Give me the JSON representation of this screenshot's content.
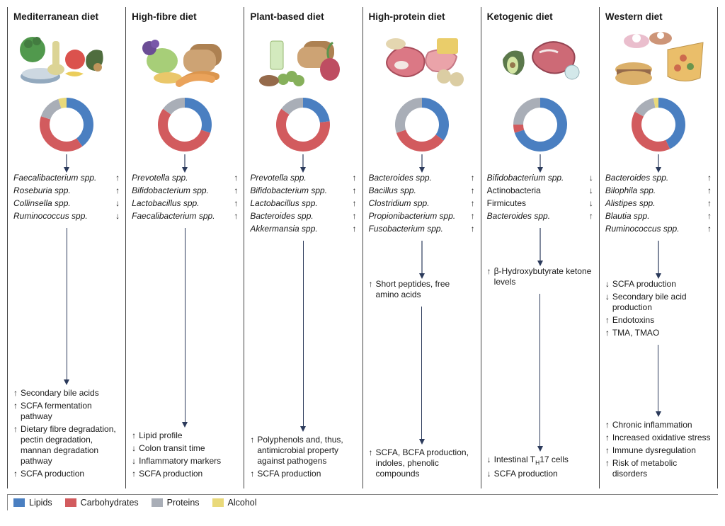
{
  "colors": {
    "lipids": "#4a7fc1",
    "carbs": "#d25b5e",
    "proteins": "#a9aeb7",
    "alcohol": "#e9d97a",
    "arrow": "#2b3a5b",
    "border": "#444444",
    "text": "#1a1a1a"
  },
  "fonts": {
    "title_weight": "700",
    "title_size_pt": 13.5,
    "body_size_pt": 12
  },
  "donut": {
    "outer_r": 38,
    "inner_r": 24
  },
  "legend": [
    {
      "key": "lipids",
      "label": "Lipids"
    },
    {
      "key": "carbs",
      "label": "Carbohydrates"
    },
    {
      "key": "proteins",
      "label": "Proteins"
    },
    {
      "key": "alcohol",
      "label": "Alcohol"
    }
  ],
  "diets": [
    {
      "title": "Mediterranean diet",
      "food_icon": "mediterranean",
      "macros": {
        "lipids": 40,
        "carbs": 40,
        "proteins": 15,
        "alcohol": 5
      },
      "bacteria": [
        {
          "name": "Faecalibacterium spp.",
          "dir": "up"
        },
        {
          "name": "Roseburia spp.",
          "dir": "up"
        },
        {
          "name": "Collinsella spp.",
          "dir": "down"
        },
        {
          "name": "Ruminococcus spp.",
          "dir": "down"
        }
      ],
      "metabolites": [],
      "outcomes": [
        {
          "dir": "up",
          "text": "Secondary bile acids"
        },
        {
          "dir": "up",
          "text": "SCFA fermentation pathway"
        },
        {
          "dir": "up",
          "text": "Dietary fibre degradation, pectin degradation, mannan degradation pathway"
        },
        {
          "dir": "up",
          "text": "SCFA production"
        }
      ]
    },
    {
      "title": "High-fibre diet",
      "food_icon": "highfibre",
      "macros": {
        "lipids": 30,
        "carbs": 55,
        "proteins": 15,
        "alcohol": 0
      },
      "bacteria": [
        {
          "name": "Prevotella spp.",
          "dir": "up"
        },
        {
          "name": "Bifidobacterium spp.",
          "dir": "up"
        },
        {
          "name": "Lactobacillus spp.",
          "dir": "up"
        },
        {
          "name": "Faecalibacterium spp.",
          "dir": "up"
        }
      ],
      "metabolites": [],
      "outcomes": [
        {
          "dir": "up",
          "text": "Lipid profile"
        },
        {
          "dir": "down",
          "text": "Colon transit time"
        },
        {
          "dir": "down",
          "text": "Inflammatory markers"
        },
        {
          "dir": "up",
          "text": "SCFA production"
        }
      ]
    },
    {
      "title": "Plant-based diet",
      "food_icon": "plantbased",
      "macros": {
        "lipids": 23,
        "carbs": 62,
        "proteins": 15,
        "alcohol": 0
      },
      "bacteria": [
        {
          "name": "Prevotella spp.",
          "dir": "up"
        },
        {
          "name": "Bifidobacterium spp.",
          "dir": "up"
        },
        {
          "name": "Lactobacillus spp.",
          "dir": "up"
        },
        {
          "name": "Bacteroides spp.",
          "dir": "up"
        },
        {
          "name": "Akkermansia spp.",
          "dir": "up"
        }
      ],
      "metabolites": [],
      "outcomes": [
        {
          "dir": "up",
          "text": "Polyphenols and, thus, antimicrobial property against pathogens"
        },
        {
          "dir": "up",
          "text": "SCFA production"
        }
      ]
    },
    {
      "title": "High-protein diet",
      "food_icon": "highprotein",
      "macros": {
        "lipids": 35,
        "carbs": 35,
        "proteins": 30,
        "alcohol": 0
      },
      "bacteria": [
        {
          "name": "Bacteroides spp.",
          "dir": "up"
        },
        {
          "name": "Bacillus spp.",
          "dir": "up"
        },
        {
          "name": "Clostridium spp.",
          "dir": "up"
        },
        {
          "name": "Propionibacterium spp.",
          "dir": "up"
        },
        {
          "name": "Fusobacterium spp.",
          "dir": "up"
        }
      ],
      "metabolites": [
        {
          "dir": "up",
          "text": "Short peptides, free amino acids"
        }
      ],
      "outcomes": [
        {
          "dir": "up",
          "text": "SCFA, BCFA production, indoles, phenolic compounds"
        }
      ]
    },
    {
      "title": "Ketogenic diet",
      "food_icon": "ketogenic",
      "macros": {
        "lipids": 70,
        "carbs": 5,
        "proteins": 25,
        "alcohol": 0
      },
      "bacteria": [
        {
          "name": "Bifidobacterium spp.",
          "dir": "down"
        },
        {
          "name": "Actinobacteria",
          "dir": "down",
          "noitalic": true
        },
        {
          "name": "Firmicutes",
          "dir": "down",
          "noitalic": true
        },
        {
          "name": "Bacteroides spp.",
          "dir": "up"
        }
      ],
      "metabolites": [
        {
          "dir": "up",
          "text": "β-Hydroxybutyrate ketone levels"
        }
      ],
      "outcomes": [
        {
          "dir": "down",
          "text": "Intestinal T_H17 cells"
        },
        {
          "dir": "down",
          "text": "SCFA production"
        }
      ]
    },
    {
      "title": "Western diet",
      "food_icon": "western",
      "macros": {
        "lipids": 43,
        "carbs": 40,
        "proteins": 14,
        "alcohol": 3
      },
      "bacteria": [
        {
          "name": "Bacteroides spp.",
          "dir": "up"
        },
        {
          "name": "Bilophila spp.",
          "dir": "up"
        },
        {
          "name": "Alistipes spp.",
          "dir": "up"
        },
        {
          "name": "Blautia spp.",
          "dir": "up"
        },
        {
          "name": "Ruminococcus spp.",
          "dir": "up"
        }
      ],
      "metabolites": [
        {
          "dir": "down",
          "text": "SCFA production"
        },
        {
          "dir": "down",
          "text": "Secondary bile acid production"
        },
        {
          "dir": "up",
          "text": "Endotoxins"
        },
        {
          "dir": "up",
          "text": "TMA, TMAO"
        }
      ],
      "outcomes": [
        {
          "dir": "up",
          "text": "Chronic inflammation"
        },
        {
          "dir": "up",
          "text": "Increased oxidative stress"
        },
        {
          "dir": "up",
          "text": "Immune dysregulation"
        },
        {
          "dir": "up",
          "text": "Risk of metabolic disorders"
        }
      ]
    }
  ]
}
